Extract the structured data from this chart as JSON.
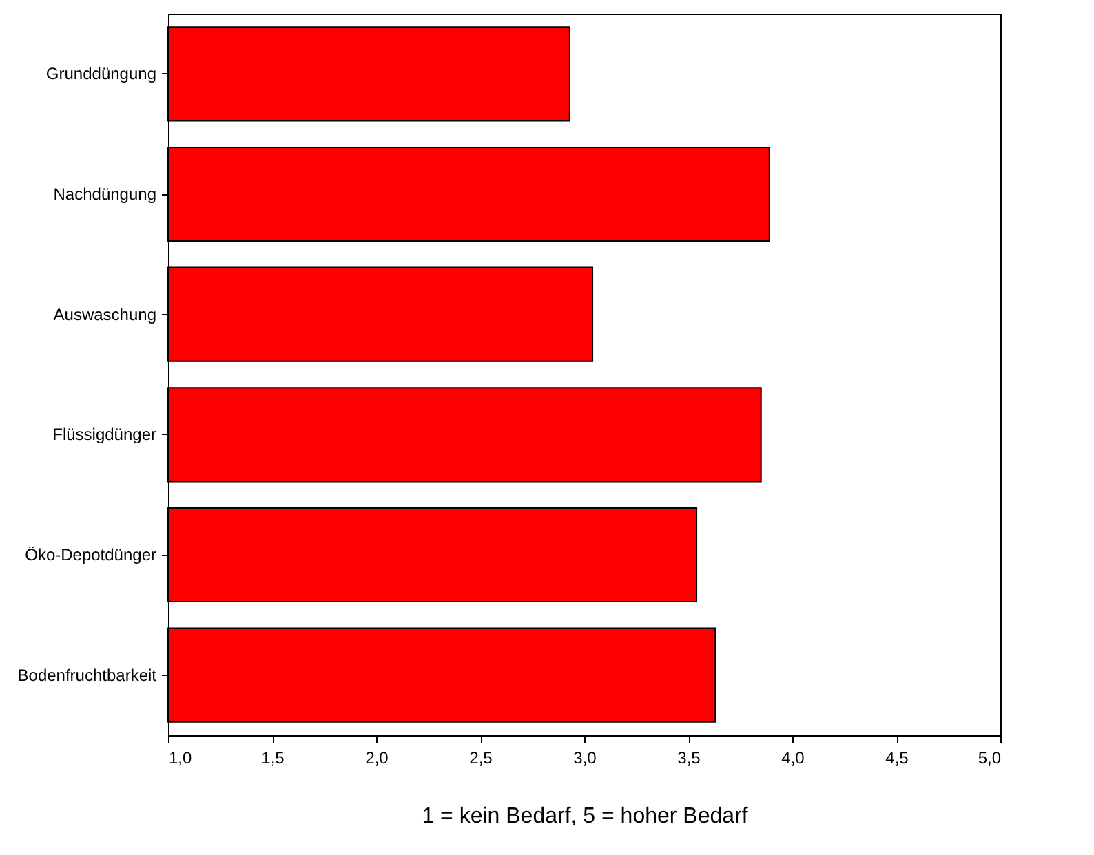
{
  "chart_data": {
    "type": "bar",
    "orientation": "horizontal",
    "xlabel": "1 = kein Bedarf, 5 = hoher Bedarf",
    "categories": [
      "Grunddüngung",
      "Nachdüngung",
      "Auswaschung",
      "Flüssigdünger",
      "Öko-Depotdünger",
      "Bodenfruchtbarkeit"
    ],
    "values": [
      2.93,
      3.89,
      3.04,
      3.85,
      3.54,
      3.63
    ],
    "color": "#ff0000",
    "xlim": [
      1,
      5
    ],
    "xticks": [
      {
        "value": 1,
        "label": "1,0"
      },
      {
        "value": 1.5,
        "label": "1,5"
      },
      {
        "value": 2,
        "label": "2,0"
      },
      {
        "value": 2.5,
        "label": "2,5"
      },
      {
        "value": 3,
        "label": "3,0"
      },
      {
        "value": 3.5,
        "label": "3,5"
      },
      {
        "value": 4,
        "label": "4,0"
      },
      {
        "value": 4.5,
        "label": "4,5"
      },
      {
        "value": 5,
        "label": "5,0"
      }
    ],
    "grid": false
  }
}
